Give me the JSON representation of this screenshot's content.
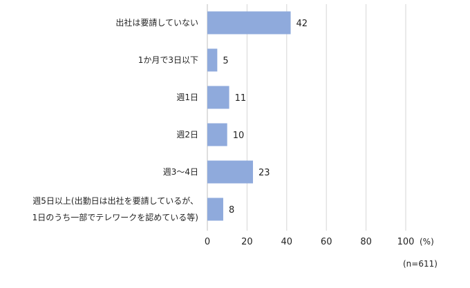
{
  "chart_data": {
    "type": "bar",
    "orientation": "horizontal",
    "categories": [
      [
        "出社は要請していない"
      ],
      [
        "1か月で3日以下"
      ],
      [
        "週1日"
      ],
      [
        "週2日"
      ],
      [
        "週3～4日"
      ],
      [
        "週5日以上(出勤日は出社を要請しているが、",
        "1日のうち一部でテレワークを認めている等)"
      ]
    ],
    "values": [
      42,
      5,
      11,
      10,
      23,
      8
    ],
    "xlim": [
      0,
      100
    ],
    "xticks": [
      0,
      20,
      40,
      60,
      80,
      100
    ],
    "unit": "(%)",
    "note": "(n=611)",
    "grid": true,
    "legend": "none",
    "colors": {
      "bar": "#8faadc",
      "grid": "#d6d6d6"
    }
  }
}
